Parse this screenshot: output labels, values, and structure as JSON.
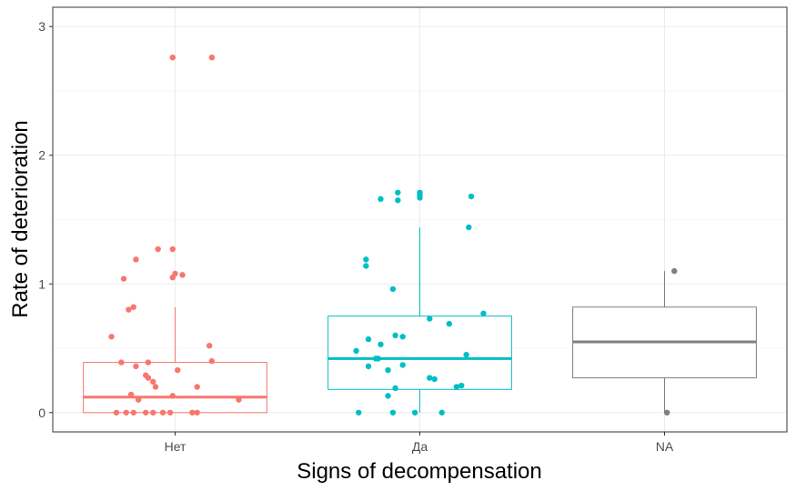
{
  "chart_data": {
    "type": "boxplot",
    "xlabel": "Signs of decompensation",
    "ylabel": "Rate of deterioration",
    "ylim": [
      -0.15,
      3.15
    ],
    "yticks": [
      0,
      1,
      2,
      3
    ],
    "grid": true,
    "legend": "none",
    "categories": [
      "Нет",
      "Да",
      "NA"
    ],
    "series": [
      {
        "category": "Нет",
        "color": "#F8766D",
        "box": {
          "lower_whisker": 0,
          "q1": 0,
          "median": 0.12,
          "q3": 0.39,
          "upper_whisker": 0.82
        },
        "points": [
          {
            "x": -0.01,
            "y": 2.76
          },
          {
            "x": 0.15,
            "y": 2.76
          },
          {
            "x": -0.16,
            "y": 1.19
          },
          {
            "x": -0.07,
            "y": 1.27
          },
          {
            "x": -0.01,
            "y": 1.27
          },
          {
            "x": -0.21,
            "y": 1.04
          },
          {
            "x": -0.01,
            "y": 1.05
          },
          {
            "x": 0.0,
            "y": 1.08
          },
          {
            "x": 0.03,
            "y": 1.07
          },
          {
            "x": -0.19,
            "y": 0.8
          },
          {
            "x": -0.17,
            "y": 0.82
          },
          {
            "x": -0.26,
            "y": 0.59
          },
          {
            "x": 0.14,
            "y": 0.52
          },
          {
            "x": 0.15,
            "y": 0.4
          },
          {
            "x": -0.22,
            "y": 0.39
          },
          {
            "x": -0.11,
            "y": 0.39
          },
          {
            "x": -0.16,
            "y": 0.36
          },
          {
            "x": 0.01,
            "y": 0.33
          },
          {
            "x": -0.12,
            "y": 0.29
          },
          {
            "x": -0.11,
            "y": 0.27
          },
          {
            "x": -0.09,
            "y": 0.24
          },
          {
            "x": -0.08,
            "y": 0.2
          },
          {
            "x": 0.09,
            "y": 0.2
          },
          {
            "x": -0.18,
            "y": 0.14
          },
          {
            "x": -0.01,
            "y": 0.13
          },
          {
            "x": -0.15,
            "y": 0.1
          },
          {
            "x": 0.26,
            "y": 0.1
          },
          {
            "x": -0.24,
            "y": 0.0
          },
          {
            "x": -0.2,
            "y": 0.0
          },
          {
            "x": -0.17,
            "y": 0.0
          },
          {
            "x": -0.12,
            "y": 0.0
          },
          {
            "x": -0.09,
            "y": 0.0
          },
          {
            "x": -0.05,
            "y": 0.0
          },
          {
            "x": -0.02,
            "y": 0.0
          },
          {
            "x": 0.07,
            "y": 0.0
          },
          {
            "x": 0.09,
            "y": 0.0
          }
        ]
      },
      {
        "category": "Да",
        "color": "#00BFC4",
        "box": {
          "lower_whisker": 0,
          "q1": 0.18,
          "median": 0.42,
          "q3": 0.75,
          "upper_whisker": 1.44
        },
        "points": [
          {
            "x": -0.16,
            "y": 1.66
          },
          {
            "x": -0.09,
            "y": 1.71
          },
          {
            "x": -0.09,
            "y": 1.65
          },
          {
            "x": 0.0,
            "y": 1.69
          },
          {
            "x": 0.0,
            "y": 1.71
          },
          {
            "x": 0.0,
            "y": 1.67
          },
          {
            "x": 0.21,
            "y": 1.68
          },
          {
            "x": 0.2,
            "y": 1.44
          },
          {
            "x": -0.22,
            "y": 1.19
          },
          {
            "x": -0.22,
            "y": 1.14
          },
          {
            "x": -0.11,
            "y": 0.96
          },
          {
            "x": 0.26,
            "y": 0.77
          },
          {
            "x": 0.04,
            "y": 0.73
          },
          {
            "x": 0.12,
            "y": 0.69
          },
          {
            "x": -0.1,
            "y": 0.6
          },
          {
            "x": -0.07,
            "y": 0.59
          },
          {
            "x": -0.21,
            "y": 0.57
          },
          {
            "x": -0.16,
            "y": 0.53
          },
          {
            "x": -0.26,
            "y": 0.48
          },
          {
            "x": 0.19,
            "y": 0.45
          },
          {
            "x": -0.17,
            "y": 0.42
          },
          {
            "x": -0.18,
            "y": 0.42
          },
          {
            "x": -0.07,
            "y": 0.37
          },
          {
            "x": -0.21,
            "y": 0.36
          },
          {
            "x": -0.13,
            "y": 0.33
          },
          {
            "x": 0.04,
            "y": 0.27
          },
          {
            "x": 0.06,
            "y": 0.26
          },
          {
            "x": 0.15,
            "y": 0.2
          },
          {
            "x": 0.17,
            "y": 0.21
          },
          {
            "x": -0.1,
            "y": 0.19
          },
          {
            "x": -0.13,
            "y": 0.13
          },
          {
            "x": -0.25,
            "y": 0.0
          },
          {
            "x": -0.11,
            "y": 0.0
          },
          {
            "x": -0.02,
            "y": 0.0
          },
          {
            "x": 0.09,
            "y": 0.0
          }
        ]
      },
      {
        "category": "NA",
        "color": "#7F7F7F",
        "box": {
          "lower_whisker": 0,
          "q1": 0.27,
          "median": 0.55,
          "q3": 0.82,
          "upper_whisker": 1.1
        },
        "points": [
          {
            "x": 0.04,
            "y": 1.1
          },
          {
            "x": 0.01,
            "y": 0.0
          }
        ]
      }
    ]
  }
}
